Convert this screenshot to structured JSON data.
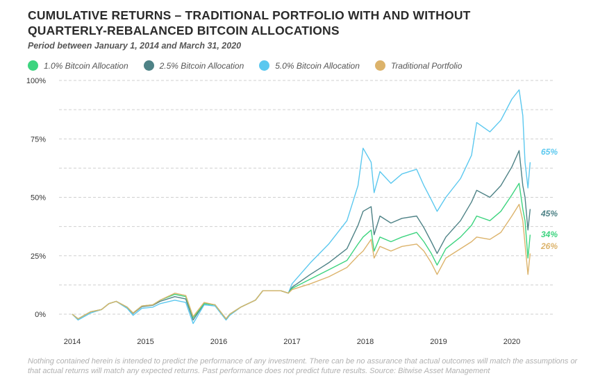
{
  "title_line1": "CUMULATIVE RETURNS – TRADITIONAL PORTFOLIO WITH AND WITHOUT",
  "title_line2": "QUARTERLY-REBALANCED BITCOIN ALLOCATIONS",
  "subtitle": "Period between January 1, 2014 and March 31, 2020",
  "footnote": "Nothing contained herein is intended to predict the performance of any investment. There can be no assurance that actual outcomes will match the assumptions or that actual returns will match any expected returns. Past performance does not predict future results. Source: Bitwise Asset Management",
  "chart_data": {
    "type": "line",
    "ylim": [
      -5,
      100
    ],
    "xlim": [
      2014,
      2020.25
    ],
    "grid": true,
    "legend_placement": "top",
    "y_ticks": [
      "0%",
      "25%",
      "50%",
      "75%",
      "100%"
    ],
    "y_tick_values": [
      0,
      25,
      50,
      75,
      100
    ],
    "x_ticks": [
      "2014",
      "2015",
      "2016",
      "2017",
      "2018",
      "2019",
      "2020"
    ],
    "x_tick_values": [
      2014,
      2015,
      2016,
      2017,
      2018,
      2019,
      2020
    ],
    "x": [
      2014.0,
      2014.08,
      2014.25,
      2014.4,
      2014.5,
      2014.6,
      2014.75,
      2014.83,
      2014.95,
      2015.1,
      2015.2,
      2015.4,
      2015.55,
      2015.65,
      2015.8,
      2015.95,
      2016.1,
      2016.15,
      2016.3,
      2016.5,
      2016.6,
      2016.85,
      2016.95,
      2017.0,
      2017.25,
      2017.5,
      2017.75,
      2017.9,
      2017.97,
      2018.08,
      2018.12,
      2018.2,
      2018.35,
      2018.5,
      2018.7,
      2018.8,
      2018.9,
      2018.98,
      2019.1,
      2019.3,
      2019.45,
      2019.52,
      2019.7,
      2019.85,
      2020.0,
      2020.1,
      2020.15,
      2020.18,
      2020.22,
      2020.25
    ],
    "series": [
      {
        "name": "1.0% Bitcoin Allocation",
        "color": "#3dd47f",
        "end_label": "34%",
        "values": [
          0,
          -2,
          1,
          2,
          4.5,
          5.5,
          3,
          0.5,
          3.5,
          4,
          6,
          8.5,
          7.5,
          -1.5,
          4.5,
          4,
          -2,
          0,
          3,
          6,
          10,
          10,
          9,
          11,
          15,
          19,
          23,
          30,
          33,
          36,
          27,
          33,
          31,
          33,
          35,
          31,
          26,
          21,
          28,
          33,
          38,
          42,
          40,
          44,
          51,
          56,
          45,
          40,
          24,
          34
        ]
      },
      {
        "name": "2.5% Bitcoin Allocation",
        "color": "#4e8286",
        "end_label": "45%",
        "values": [
          0,
          -2,
          1,
          2,
          4.5,
          5.5,
          3,
          0.3,
          3.2,
          3.8,
          5.5,
          7.5,
          6.5,
          -2.5,
          4.5,
          4,
          -2,
          0,
          3,
          6,
          10,
          10,
          9,
          11.5,
          17,
          22,
          28,
          38,
          44,
          46,
          34,
          42,
          39,
          41,
          42,
          37,
          31,
          26,
          33,
          40,
          48,
          53,
          50,
          55,
          63,
          70,
          55,
          50,
          36,
          45
        ]
      },
      {
        "name": "5.0% Bitcoin Allocation",
        "color": "#5bc8ef",
        "end_label": "65%",
        "values": [
          0,
          -2.5,
          0.5,
          2,
          4.5,
          5.5,
          2.5,
          -0.5,
          2.5,
          3,
          4.5,
          6,
          5,
          -4,
          4,
          3.5,
          -2.5,
          -0.5,
          3,
          6,
          10,
          10,
          9,
          13,
          22,
          30,
          40,
          55,
          71,
          65,
          52,
          61,
          56,
          60,
          62,
          55,
          49,
          44,
          50,
          58,
          68,
          82,
          78,
          83,
          92,
          96,
          85,
          65,
          54,
          65
        ]
      },
      {
        "name": "Traditional Portfolio",
        "color": "#dcb36b",
        "end_label": "26%",
        "values": [
          0,
          -2,
          1,
          2,
          4.5,
          5.5,
          3,
          0.5,
          3.5,
          4,
          6,
          9,
          8,
          -1,
          5,
          4,
          -2,
          0,
          3,
          6,
          10,
          10,
          9,
          10.5,
          13,
          16,
          20,
          25,
          27,
          32,
          24,
          29,
          27,
          29,
          30,
          27,
          22,
          17,
          24,
          28,
          31,
          33,
          32,
          35,
          42,
          47,
          40,
          30,
          17,
          26
        ]
      }
    ]
  }
}
